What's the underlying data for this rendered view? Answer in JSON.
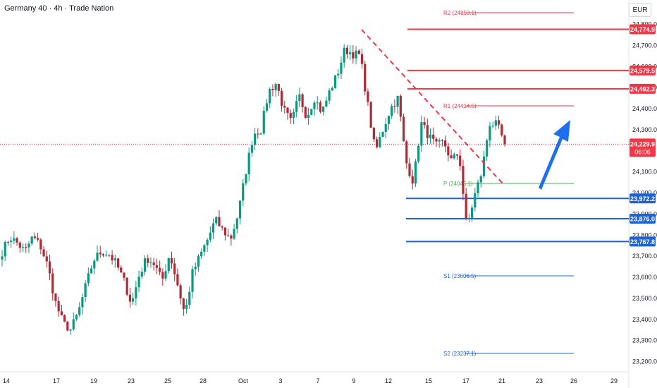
{
  "header": {
    "title": "Germany 40 · 4h · Trade Nation",
    "currency": "EUR"
  },
  "colors": {
    "up": "#089981",
    "down": "#b22833",
    "resistance": "#f23645",
    "support": "#1e63d6",
    "pivot": "#4caf50",
    "arrow": "#1e6ff0",
    "price": "#f23645"
  },
  "chart_data": {
    "type": "candlestick",
    "yaxis": {
      "min": 23150,
      "max": 24850,
      "ticks": [
        23200,
        23300,
        23400,
        23500,
        23600,
        23700,
        23800,
        23900,
        24000,
        24100,
        24300,
        24400,
        24500,
        24600,
        24700,
        24800
      ]
    },
    "ytick_labels": [
      "23,200.0",
      "23,300.0",
      "23,400.0",
      "23,500.0",
      "23,600.0",
      "23,700.0",
      "23,800.0",
      "23,900.0",
      "24,000.0",
      "24,100.0",
      "24,300.0",
      "24,400.0",
      "24,500.0",
      "24,600.0",
      "24,700.0",
      "24,800.0"
    ],
    "xlabels": [
      "14",
      "17",
      "19",
      "23",
      "25",
      "28",
      "Oct",
      "3",
      "7",
      "9",
      "12",
      "15",
      "17",
      "21",
      "23",
      "26",
      "29"
    ],
    "current_price": {
      "value": 24229.9,
      "label": "24,229.9",
      "countdown": "06:06"
    },
    "levels": [
      {
        "name": "R2",
        "label": "R2 (24853.1)",
        "value": 24853.1,
        "kind": "pivot-r"
      },
      {
        "name": "R1",
        "label": "R1 (24414.5)",
        "value": 24414.5,
        "kind": "pivot-r"
      },
      {
        "name": "P",
        "label": "P (24045.1)",
        "value": 24045.1,
        "kind": "pivot-p"
      },
      {
        "name": "S1",
        "label": "S1 (23606.5)",
        "value": 23606.5,
        "kind": "pivot-s"
      },
      {
        "name": "S2",
        "label": "S2 (23237.1)",
        "value": 23237.1,
        "kind": "pivot-s"
      }
    ],
    "horizontal_lines": [
      {
        "value": 24774.9,
        "label": "24,774.9",
        "kind": "resistance"
      },
      {
        "value": 24579.5,
        "label": "24,579.5",
        "kind": "resistance"
      },
      {
        "value": 24492.3,
        "label": "24,492.3",
        "kind": "resistance"
      },
      {
        "value": 23972.2,
        "label": "23,972.2",
        "kind": "support"
      },
      {
        "value": 23876.0,
        "label": "23,876.0",
        "kind": "support"
      },
      {
        "value": 23767.8,
        "label": "23,767.8",
        "kind": "support"
      }
    ],
    "keypoints": [
      23720,
      23790,
      23760,
      23720,
      23790,
      23750,
      23650,
      23480,
      23380,
      23350,
      23430,
      23560,
      23680,
      23720,
      23710,
      23660,
      23580,
      23470,
      23610,
      23690,
      23660,
      23580,
      23710,
      23570,
      23420,
      23620,
      23700,
      23780,
      23870,
      23820,
      23780,
      23900,
      24100,
      24280,
      24300,
      24480,
      24520,
      24390,
      24330,
      24460,
      24360,
      24450,
      24380,
      24480,
      24560,
      24680,
      24660,
      24650,
      24420,
      24190,
      24300,
      24400,
      24450,
      24150,
      24050,
      24330,
      24270,
      24220,
      24240,
      24150,
      24190,
      23830,
      23980,
      24100,
      24330,
      24320,
      24229.9
    ]
  }
}
